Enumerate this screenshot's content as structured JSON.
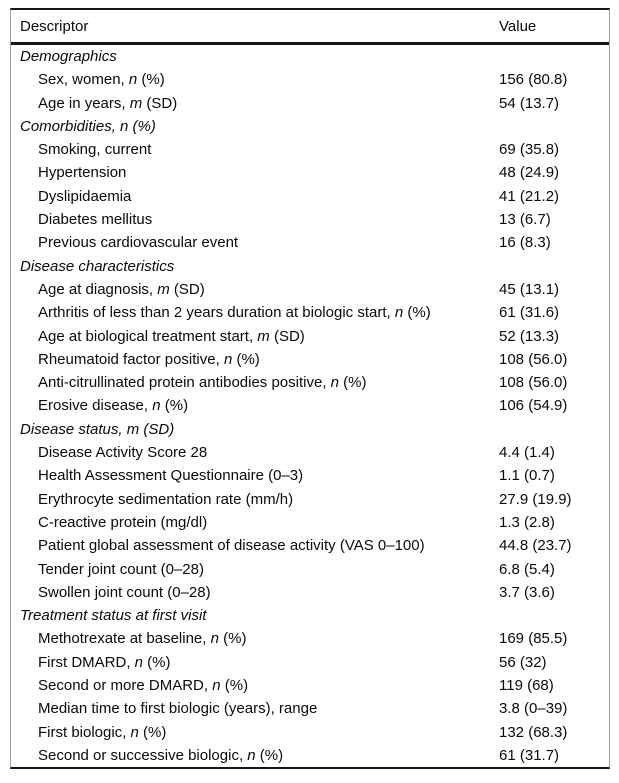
{
  "table": {
    "header": {
      "descriptor": "Descriptor",
      "value": "Value"
    },
    "colors": {
      "text": "#0a0a0a",
      "rule": "#161616",
      "side_border": "#9e9e9e",
      "background": "#ffffff"
    },
    "sections": [
      {
        "title": "Demographics",
        "rows": [
          {
            "pre": "Sex, women, ",
            "var": "n",
            "post": " (%)",
            "value": "156 (80.8)"
          },
          {
            "pre": "Age in years, ",
            "var": "m",
            "post": " (SD)",
            "value": "54 (13.7)"
          }
        ]
      },
      {
        "title": "Comorbidities, n (%)",
        "rows": [
          {
            "pre": "Smoking, current",
            "var": "",
            "post": "",
            "value": "69 (35.8)"
          },
          {
            "pre": "Hypertension",
            "var": "",
            "post": "",
            "value": "48 (24.9)"
          },
          {
            "pre": "Dyslipidaemia",
            "var": "",
            "post": "",
            "value": "41 (21.2)"
          },
          {
            "pre": "Diabetes mellitus",
            "var": "",
            "post": "",
            "value": "13 (6.7)"
          },
          {
            "pre": "Previous cardiovascular event",
            "var": "",
            "post": "",
            "value": "16 (8.3)"
          }
        ]
      },
      {
        "title": "Disease characteristics",
        "rows": [
          {
            "pre": "Age at diagnosis, ",
            "var": "m",
            "post": " (SD)",
            "value": "45 (13.1)"
          },
          {
            "pre": "Arthritis of less than 2 years duration at biologic start, ",
            "var": "n",
            "post": " (%)",
            "value": "61 (31.6)"
          },
          {
            "pre": "Age at biological treatment start, ",
            "var": "m",
            "post": " (SD)",
            "value": "52 (13.3)"
          },
          {
            "pre": "Rheumatoid factor positive, ",
            "var": "n",
            "post": " (%)",
            "value": "108 (56.0)"
          },
          {
            "pre": "Anti-citrullinated protein antibodies positive, ",
            "var": "n",
            "post": " (%)",
            "value": "108 (56.0)"
          },
          {
            "pre": "Erosive disease, ",
            "var": "n",
            "post": " (%)",
            "value": "106 (54.9)"
          }
        ]
      },
      {
        "title": "Disease status, m (SD)",
        "rows": [
          {
            "pre": "Disease Activity Score 28",
            "var": "",
            "post": "",
            "value": "4.4 (1.4)"
          },
          {
            "pre": "Health Assessment Questionnaire (0–3)",
            "var": "",
            "post": "",
            "value": "1.1 (0.7)"
          },
          {
            "pre": "Erythrocyte sedimentation rate (mm/h)",
            "var": "",
            "post": "",
            "value": "27.9 (19.9)"
          },
          {
            "pre": "C-reactive protein (mg/dl)",
            "var": "",
            "post": "",
            "value": "1.3 (2.8)"
          },
          {
            "pre": "Patient global assessment of disease activity (VAS 0–100)",
            "var": "",
            "post": "",
            "value": "44.8 (23.7)"
          },
          {
            "pre": "Tender joint count (0–28)",
            "var": "",
            "post": "",
            "value": "6.8 (5.4)"
          },
          {
            "pre": "Swollen joint count (0–28)",
            "var": "",
            "post": "",
            "value": "3.7 (3.6)"
          }
        ]
      },
      {
        "title": "Treatment status at first visit",
        "rows": [
          {
            "pre": "Methotrexate at baseline, ",
            "var": "n",
            "post": " (%)",
            "value": "169 (85.5)"
          },
          {
            "pre": "First DMARD, ",
            "var": "n",
            "post": " (%)",
            "value": "56 (32)"
          },
          {
            "pre": "Second or more DMARD, ",
            "var": "n",
            "post": " (%)",
            "value": "119 (68)"
          },
          {
            "pre": "Median time to first biologic (years), range",
            "var": "",
            "post": "",
            "value": "3.8 (0–39)"
          },
          {
            "pre": "First biologic, ",
            "var": "n",
            "post": " (%)",
            "value": "132 (68.3)"
          },
          {
            "pre": "Second or successive biologic, ",
            "var": "n",
            "post": " (%)",
            "value": "61 (31.7)"
          }
        ]
      }
    ]
  }
}
